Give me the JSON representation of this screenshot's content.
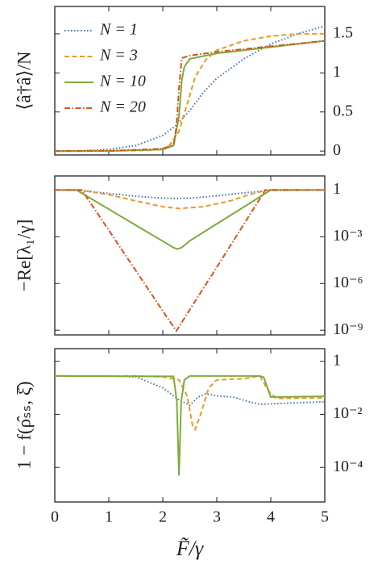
{
  "chart_data": [
    {
      "type": "line",
      "ylabel": "⟨â†â⟩/N",
      "xlim": [
        0,
        5
      ],
      "xticks": [
        0,
        1,
        2,
        3,
        4,
        5
      ],
      "ylim": [
        -0.05,
        1.85
      ],
      "yticks": [
        0,
        0.5,
        1,
        1.5
      ],
      "legend": "upper left",
      "series": [
        {
          "name": "N = 1",
          "color": "#4a6fb3",
          "style": "dotted",
          "x": [
            0,
            0.5,
            1,
            1.5,
            2,
            2.25,
            2.5,
            2.75,
            3,
            3.5,
            4,
            4.5,
            5
          ],
          "values": [
            0,
            0.005,
            0.02,
            0.07,
            0.2,
            0.33,
            0.52,
            0.75,
            0.93,
            1.18,
            1.37,
            1.5,
            1.6
          ]
        },
        {
          "name": "N = 3",
          "color": "#e89a2c",
          "style": "dashed",
          "x": [
            0,
            1,
            1.8,
            2.1,
            2.3,
            2.45,
            2.6,
            2.8,
            3,
            3.5,
            4,
            4.5,
            5
          ],
          "values": [
            0,
            0.002,
            0.01,
            0.05,
            0.25,
            0.6,
            0.95,
            1.17,
            1.29,
            1.41,
            1.47,
            1.5,
            1.5
          ]
        },
        {
          "name": "N = 10",
          "color": "#7dab3a",
          "style": "solid",
          "x": [
            0,
            1,
            2,
            2.2,
            2.3,
            2.35,
            2.4,
            2.5,
            3,
            4,
            5
          ],
          "values": [
            0,
            0.002,
            0.02,
            0.07,
            0.45,
            0.9,
            1.08,
            1.18,
            1.25,
            1.33,
            1.41
          ]
        },
        {
          "name": "N = 20",
          "color": "#d9541e",
          "style": "dashdot",
          "x": [
            0,
            1,
            2,
            2.2,
            2.25,
            2.3,
            2.35,
            2.5,
            3,
            4,
            5
          ],
          "values": [
            0,
            0.002,
            0.03,
            0.08,
            0.3,
            0.8,
            1.19,
            1.22,
            1.27,
            1.34,
            1.41
          ]
        }
      ]
    },
    {
      "type": "line",
      "ylabel": "−Re[λ₁/γ]",
      "log": true,
      "xlim": [
        0,
        5
      ],
      "xticks": [
        0,
        1,
        2,
        3,
        4,
        5
      ],
      "ylim": [
        5e-10,
        8
      ],
      "yticks": [
        1,
        {
          "value": 0.001,
          "label": "10⁻³"
        },
        {
          "value": 1e-06,
          "label": "10⁻⁶"
        },
        {
          "value": 1e-09,
          "label": "10⁻⁹"
        }
      ],
      "series": [
        {
          "color": "#4a6fb3",
          "style": "dotted",
          "x": [
            0,
            0.5,
            1,
            1.5,
            2,
            2.25,
            2.5,
            3,
            3.5,
            4,
            5
          ],
          "values": [
            1,
            0.9,
            0.6,
            0.4,
            0.3,
            0.28,
            0.3,
            0.42,
            0.65,
            0.95,
            1
          ]
        },
        {
          "color": "#e89a2c",
          "style": "dashed",
          "x": [
            0,
            0.5,
            1,
            1.5,
            2,
            2.3,
            2.75,
            3.25,
            3.6,
            3.9,
            5
          ],
          "values": [
            1,
            0.95,
            0.5,
            0.2,
            0.085,
            0.065,
            0.085,
            0.2,
            0.5,
            0.95,
            1
          ]
        },
        {
          "color": "#7dab3a",
          "style": "solid",
          "x": [
            0,
            0.4,
            1,
            1.5,
            2,
            2.2,
            2.27,
            2.35,
            2.5,
            3,
            3.5,
            4,
            5
          ],
          "values": [
            1,
            1,
            0.059,
            0.0055,
            0.00052,
            0.0002,
            0.00016,
            0.0002,
            0.00055,
            0.0067,
            0.081,
            1,
            1
          ]
        },
        {
          "color": "#d9541e",
          "style": "dashdot",
          "x": [
            0,
            0.5,
            1,
            1.5,
            2,
            2.25,
            2.5,
            3,
            3.5,
            3.9,
            5
          ],
          "values": [
            1,
            1,
            0.0026,
            6.8e-06,
            1.7e-08,
            9e-10,
            2.1e-08,
            1.1e-05,
            0.0063,
            1,
            1
          ]
        }
      ]
    },
    {
      "type": "line",
      "ylabel": "1 − f(ρ̂ₛₛ, ξ̂)",
      "xlabel": "F̃/γ",
      "log": true,
      "xlim": [
        0,
        5
      ],
      "xticks": [
        0,
        1,
        2,
        3,
        4,
        5
      ],
      "ylim": [
        5e-06,
        3
      ],
      "yticks": [
        1,
        {
          "value": 0.01,
          "label": "10⁻²"
        },
        {
          "value": 0.0001,
          "label": "10⁻⁴"
        }
      ],
      "series": [
        {
          "color": "#4a6fb3",
          "style": "dotted",
          "x": [
            0,
            1,
            1.5,
            2,
            2.3,
            2.5,
            2.65,
            2.8,
            3,
            3.3,
            3.6,
            3.8,
            4,
            5
          ],
          "values": [
            0.28,
            0.28,
            0.26,
            0.1,
            0.035,
            0.022,
            0.045,
            0.06,
            0.05,
            0.045,
            0.03,
            0.024,
            0.025,
            0.03
          ]
        },
        {
          "color": "#e89a2c",
          "style": "dashed",
          "x": [
            0,
            1.5,
            2,
            2.3,
            2.45,
            2.55,
            2.6,
            2.7,
            2.85,
            3,
            3.5,
            3.7,
            3.8,
            3.95,
            4.1,
            5
          ],
          "values": [
            0.28,
            0.28,
            0.26,
            0.2,
            0.05,
            0.004,
            0.0027,
            0.01,
            0.1,
            0.2,
            0.22,
            0.26,
            0.28,
            0.08,
            0.04,
            0.042
          ]
        },
        {
          "color": "#7dab3a",
          "style": "solid",
          "x": [
            0,
            2.2,
            2.26,
            2.3,
            2.34,
            2.4,
            2.5,
            3.8,
            3.87,
            4,
            5
          ],
          "values": [
            0.28,
            0.27,
            0.03,
            5e-05,
            0.03,
            0.2,
            0.28,
            0.28,
            0.25,
            0.045,
            0.048
          ]
        }
      ]
    }
  ]
}
